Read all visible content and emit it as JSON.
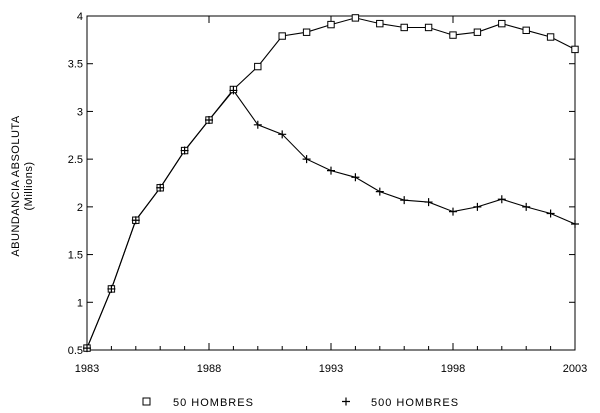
{
  "chart_data": {
    "type": "line",
    "title": "",
    "xlabel": "",
    "ylabel": "ABUNDANCIA ABSOLUTA",
    "ylabel_unit": "(Millions)",
    "xlim": [
      1983,
      2003
    ],
    "ylim": [
      0.5,
      4
    ],
    "x_ticks": [
      "1983",
      "1988",
      "1993",
      "1998",
      "2003"
    ],
    "y_ticks": [
      "0.5",
      "1",
      "1.5",
      "2",
      "2.5",
      "3",
      "3.5",
      "4"
    ],
    "grid": false,
    "legend_position": "bottom",
    "x": [
      1983,
      1984,
      1985,
      1986,
      1987,
      1988,
      1989,
      1990,
      1991,
      1992,
      1993,
      1994,
      1995,
      1996,
      1997,
      1998,
      1999,
      2000,
      2001,
      2002,
      2003
    ],
    "series": [
      {
        "name": "50 HOMBRES",
        "marker": "square",
        "values": [
          0.52,
          1.14,
          1.86,
          2.2,
          2.59,
          2.91,
          3.23,
          3.47,
          3.79,
          3.83,
          3.91,
          3.98,
          3.92,
          3.88,
          3.88,
          3.8,
          3.83,
          3.92,
          3.85,
          3.78,
          3.65
        ]
      },
      {
        "name": "500 HOMBRES",
        "marker": "plus",
        "values": [
          0.52,
          1.14,
          1.86,
          2.2,
          2.59,
          2.91,
          3.22,
          2.86,
          2.76,
          2.5,
          2.38,
          2.31,
          2.16,
          2.07,
          2.05,
          1.95,
          2.0,
          2.08,
          2.0,
          1.93,
          1.82
        ]
      }
    ]
  }
}
